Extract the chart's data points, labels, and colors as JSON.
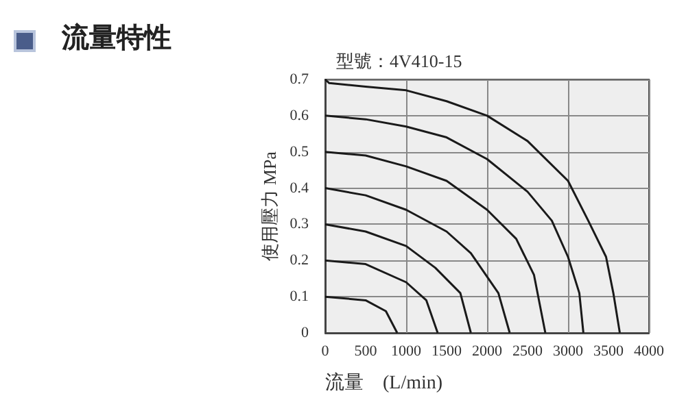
{
  "chart_data": {
    "type": "line",
    "title": "流量特性",
    "subtitle": "型號：4V410-15",
    "xlabel": "流量　(L/min)",
    "ylabel": "使用壓力 MPa",
    "xlim": [
      0,
      4000
    ],
    "xticks": [
      0,
      500,
      1000,
      1500,
      2000,
      2500,
      3000,
      3500,
      4000
    ],
    "ylim": [
      0,
      0.7
    ],
    "yticks": [
      0,
      0.1,
      0.2,
      0.3,
      0.4,
      0.5,
      0.6,
      0.7
    ],
    "grid": true,
    "marker": "none",
    "line_style": "solid",
    "series": [
      {
        "color": "#1a1a1a",
        "x": [
          0,
          50,
          500,
          1000,
          1500,
          2000,
          2500,
          3000,
          3250,
          3470,
          3560,
          3640
        ],
        "values": [
          0.7,
          0.69,
          0.68,
          0.67,
          0.64,
          0.6,
          0.53,
          0.42,
          0.31,
          0.21,
          0.11,
          0
        ]
      },
      {
        "color": "#1a1a1a",
        "x": [
          0,
          500,
          1000,
          1500,
          2000,
          2500,
          2800,
          3000,
          3140,
          3190
        ],
        "values": [
          0.6,
          0.59,
          0.57,
          0.54,
          0.48,
          0.39,
          0.31,
          0.21,
          0.11,
          0
        ]
      },
      {
        "color": "#1a1a1a",
        "x": [
          0,
          500,
          1000,
          1500,
          2000,
          2360,
          2580,
          2720
        ],
        "values": [
          0.5,
          0.49,
          0.46,
          0.42,
          0.34,
          0.26,
          0.16,
          0
        ]
      },
      {
        "color": "#1a1a1a",
        "x": [
          0,
          500,
          1000,
          1500,
          1800,
          2140,
          2280
        ],
        "values": [
          0.4,
          0.38,
          0.34,
          0.28,
          0.22,
          0.11,
          0
        ]
      },
      {
        "color": "#1a1a1a",
        "x": [
          0,
          500,
          1000,
          1360,
          1670,
          1800
        ],
        "values": [
          0.3,
          0.28,
          0.24,
          0.18,
          0.11,
          0
        ]
      },
      {
        "color": "#1a1a1a",
        "x": [
          0,
          500,
          1000,
          1250,
          1390
        ],
        "values": [
          0.2,
          0.19,
          0.14,
          0.09,
          0
        ]
      },
      {
        "color": "#1a1a1a",
        "x": [
          0,
          500,
          750,
          890
        ],
        "values": [
          0.1,
          0.09,
          0.06,
          0
        ]
      }
    ]
  }
}
